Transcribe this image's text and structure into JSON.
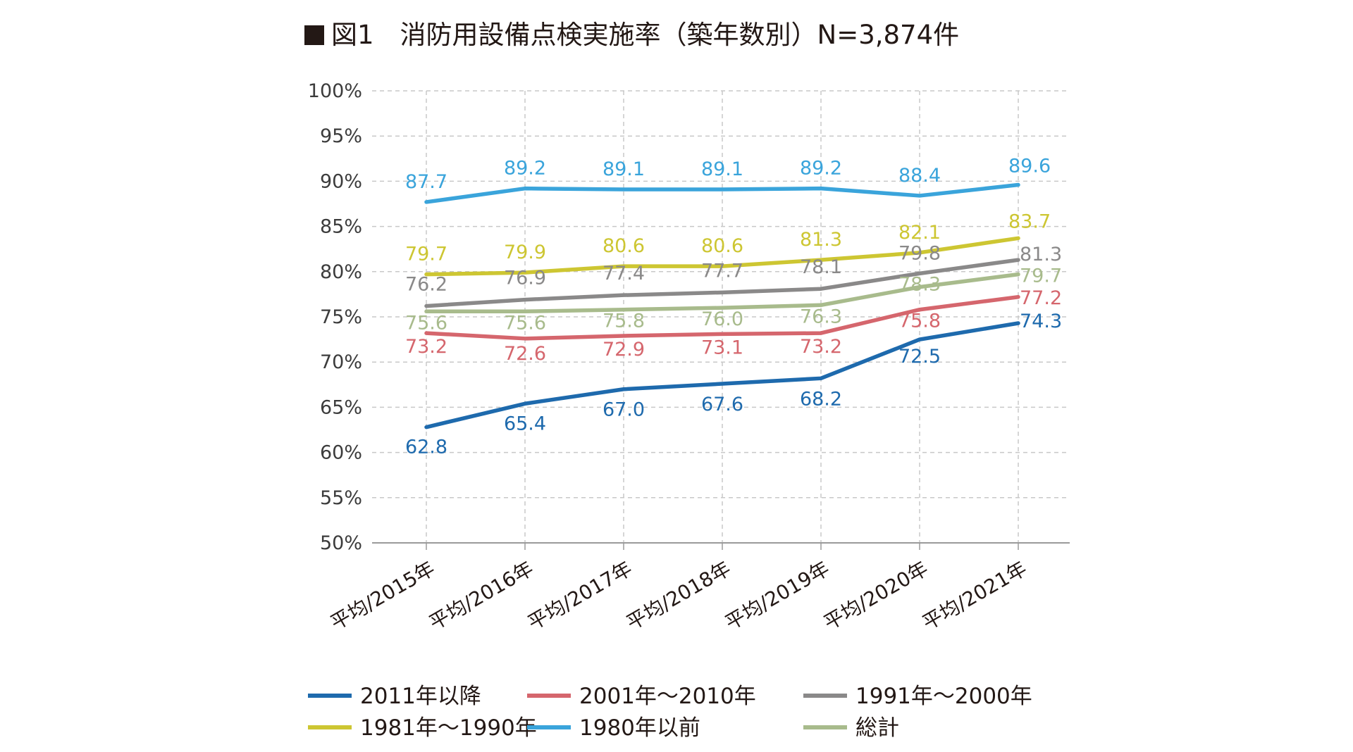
{
  "chart_data": {
    "type": "line",
    "title": "■図1　消防用設備点検実施率（築年数別）N=3,874件",
    "title_marker": "■",
    "title_text": "図1　消防用設備点検実施率（築年数別）N=3,874件",
    "categories": [
      "平均/2015年",
      "平均/2016年",
      "平均/2017年",
      "平均/2018年",
      "平均/2019年",
      "平均/2020年",
      "平均/2021年"
    ],
    "ylim": [
      50,
      100
    ],
    "yticks": [
      50,
      55,
      60,
      65,
      70,
      75,
      80,
      85,
      90,
      95,
      100
    ],
    "ytick_suffix": "%",
    "xlabel": "",
    "ylabel": "",
    "grid": true,
    "legend_position": "bottom",
    "series": [
      {
        "name": "2011年以降",
        "color": "#1e6aad",
        "values": [
          62.8,
          65.4,
          67.0,
          67.6,
          68.2,
          72.5,
          74.3
        ],
        "labels": [
          "62.8",
          "65.4",
          "67.0",
          "67.6",
          "68.2",
          "72.5",
          "74.3"
        ]
      },
      {
        "name": "2001年～2010年",
        "color": "#d5666d",
        "values": [
          73.2,
          72.6,
          72.9,
          73.1,
          73.2,
          75.8,
          77.2
        ],
        "labels": [
          "73.2",
          "72.6",
          "72.9",
          "73.1",
          "73.2",
          "75.8",
          "77.2"
        ]
      },
      {
        "name": "1991年～2000年",
        "color": "#8a8989",
        "values": [
          76.2,
          76.9,
          77.4,
          77.7,
          78.1,
          79.8,
          81.3
        ],
        "labels": [
          "76.2",
          "76.9",
          "77.4",
          "77.7",
          "78.1",
          "79.8",
          "81.3"
        ]
      },
      {
        "name": "1981年～1990年",
        "color": "#cdc632",
        "values": [
          79.7,
          79.9,
          80.6,
          80.6,
          81.3,
          82.1,
          83.7
        ],
        "labels": [
          "79.7",
          "79.9",
          "80.6",
          "80.6",
          "81.3",
          "82.1",
          "83.7"
        ]
      },
      {
        "name": "1980年以前",
        "color": "#3aa4db",
        "values": [
          87.7,
          89.2,
          89.1,
          89.1,
          89.2,
          88.4,
          89.6
        ],
        "labels": [
          "87.7",
          "89.2",
          "89.1",
          "89.1",
          "89.2",
          "88.4",
          "89.6"
        ]
      },
      {
        "name": "総計",
        "color": "#a8bb8c",
        "values": [
          75.6,
          75.6,
          75.8,
          76.0,
          76.3,
          78.3,
          79.7
        ],
        "labels": [
          "75.6",
          "75.6",
          "75.8",
          "76.0",
          "76.3",
          "78.3",
          "79.7"
        ]
      }
    ]
  }
}
